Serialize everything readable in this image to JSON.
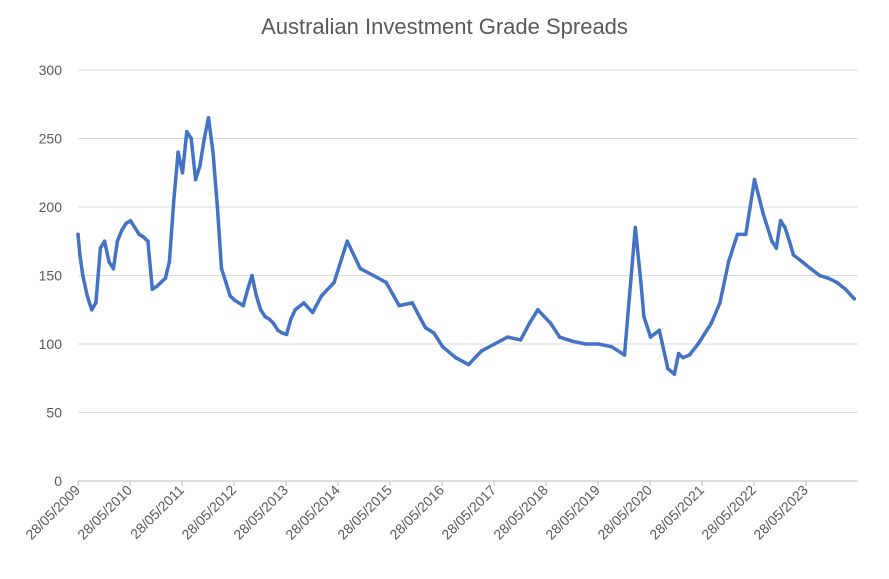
{
  "chart_data": {
    "type": "line",
    "title": "Australian Investment Grade Spreads",
    "xlabel": "",
    "ylabel": "",
    "ylim": [
      0,
      300
    ],
    "yticks": [
      0,
      50,
      100,
      150,
      200,
      250,
      300
    ],
    "xlim": [
      "2009-05-28",
      "2024-05-28"
    ],
    "xticks": [
      "28/05/2009",
      "28/05/2010",
      "28/05/2011",
      "28/05/2012",
      "28/05/2013",
      "28/05/2014",
      "28/05/2015",
      "28/05/2016",
      "28/05/2017",
      "28/05/2018",
      "28/05/2019",
      "28/05/2020",
      "28/05/2021",
      "28/05/2022",
      "28/05/2023"
    ],
    "grid": true,
    "line_color": "#4472C4",
    "series": [
      {
        "x": [
          "2009-05-28",
          "2009-06-10",
          "2009-07-01",
          "2009-08-01",
          "2009-09-01",
          "2009-10-01",
          "2009-11-01",
          "2009-12-01",
          "2010-01-01",
          "2010-02-01",
          "2010-03-01",
          "2010-04-01",
          "2010-05-01",
          "2010-06-01",
          "2010-07-01",
          "2010-08-01",
          "2010-09-01",
          "2010-10-01",
          "2010-11-01",
          "2010-12-01",
          "2011-01-01",
          "2011-02-01",
          "2011-03-01",
          "2011-04-01",
          "2011-05-01",
          "2011-06-01",
          "2011-07-01",
          "2011-08-01",
          "2011-09-01",
          "2011-10-01",
          "2011-11-01",
          "2011-12-01",
          "2012-01-01",
          "2012-02-01",
          "2012-03-01",
          "2012-04-01",
          "2012-05-01",
          "2012-06-01",
          "2012-07-01",
          "2012-08-01",
          "2012-09-01",
          "2012-10-01",
          "2012-11-01",
          "2012-12-01",
          "2013-01-01",
          "2013-02-01",
          "2013-03-01",
          "2013-04-01",
          "2013-05-01",
          "2013-06-01",
          "2013-07-01",
          "2013-08-01",
          "2013-10-01",
          "2013-12-01",
          "2014-02-01",
          "2014-05-01",
          "2014-08-01",
          "2014-11-01",
          "2015-02-01",
          "2015-05-01",
          "2015-08-01",
          "2015-11-01",
          "2016-01-01",
          "2016-02-01",
          "2016-04-01",
          "2016-06-01",
          "2016-09-01",
          "2016-12-01",
          "2017-03-01",
          "2017-06-01",
          "2017-09-01",
          "2017-12-01",
          "2018-02-01",
          "2018-04-01",
          "2018-07-01",
          "2018-09-01",
          "2018-12-01",
          "2019-03-01",
          "2019-06-01",
          "2019-09-01",
          "2019-12-01",
          "2020-02-15",
          "2020-03-25",
          "2020-04-15",
          "2020-06-01",
          "2020-08-01",
          "2020-10-01",
          "2020-11-15",
          "2020-12-15",
          "2021-01-15",
          "2021-03-01",
          "2021-05-01",
          "2021-08-01",
          "2021-10-01",
          "2021-12-01",
          "2022-02-01",
          "2022-04-01",
          "2022-06-01",
          "2022-08-01",
          "2022-10-01",
          "2022-11-01",
          "2022-12-01",
          "2023-01-01",
          "2023-02-01",
          "2023-03-01",
          "2023-05-01",
          "2023-07-01",
          "2023-09-01",
          "2023-11-01",
          "2024-01-01",
          "2024-03-01",
          "2024-05-01"
        ],
        "y": [
          180,
          165,
          150,
          135,
          125,
          130,
          170,
          175,
          160,
          155,
          175,
          183,
          188,
          190,
          185,
          180,
          178,
          175,
          140,
          142,
          145,
          148,
          160,
          205,
          240,
          225,
          255,
          250,
          220,
          230,
          250,
          265,
          240,
          200,
          155,
          145,
          135,
          132,
          130,
          128,
          140,
          150,
          135,
          125,
          120,
          118,
          115,
          110,
          108,
          107,
          118,
          125,
          130,
          123,
          135,
          145,
          175,
          155,
          150,
          145,
          128,
          130,
          118,
          112,
          108,
          98,
          90,
          85,
          95,
          100,
          105,
          103,
          115,
          125,
          115,
          105,
          102,
          100,
          100,
          98,
          92,
          185,
          145,
          120,
          105,
          110,
          82,
          78,
          93,
          90,
          92,
          100,
          115,
          130,
          160,
          180,
          180,
          220,
          195,
          175,
          170,
          190,
          185,
          175,
          165,
          160,
          155,
          150,
          148,
          145,
          140,
          133
        ]
      }
    ]
  }
}
